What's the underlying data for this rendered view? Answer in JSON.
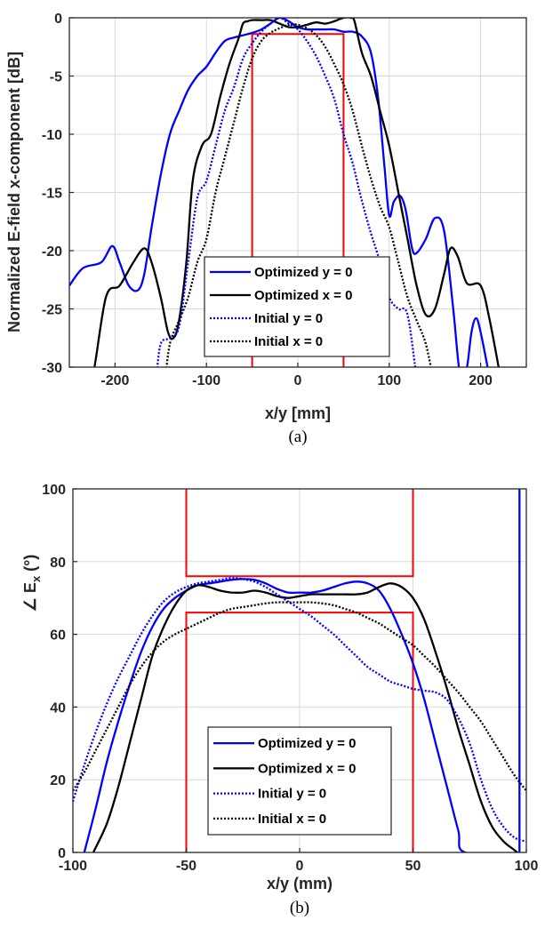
{
  "chart_data": [
    {
      "type": "line",
      "caption": "(a)",
      "xlabel": "x/y [mm]",
      "ylabel": "Normalized E-field x-component [dB]",
      "xlim": [
        -250,
        250
      ],
      "ylim": [
        -30,
        0
      ],
      "xticks": [
        -200,
        -100,
        0,
        100,
        200
      ],
      "yticks": [
        0,
        -5,
        -10,
        -15,
        -20,
        -25,
        -30
      ],
      "grid": true,
      "legend_position": "bottom-right",
      "series": [
        {
          "name": "Optimized y = 0",
          "color": "#0000ff",
          "style": "solid",
          "x": [
            -250,
            -235,
            -215,
            -203,
            -195,
            -185,
            -175,
            -168,
            -160,
            -150,
            -140,
            -130,
            -120,
            -110,
            -100,
            -90,
            -80,
            -70,
            -60,
            -50,
            -40,
            -30,
            -20,
            -10,
            0,
            10,
            20,
            30,
            40,
            50,
            60,
            70,
            80,
            88,
            95,
            100,
            105,
            112,
            118,
            125,
            130,
            140,
            150,
            160,
            170,
            178,
            185,
            190,
            195,
            200,
            210
          ],
          "y": [
            -23,
            -21.5,
            -21,
            -19.6,
            -21,
            -23,
            -23.4,
            -22,
            -18,
            -13.5,
            -10,
            -8,
            -6.2,
            -5,
            -4.2,
            -3,
            -2,
            -1.7,
            -1.5,
            -1.3,
            -1,
            -0.5,
            0,
            -0.3,
            -0.8,
            -1,
            -1,
            -1,
            -1,
            -1.2,
            -1.2,
            -1.6,
            -3,
            -7,
            -13,
            -17,
            -15.8,
            -15.3,
            -16.5,
            -19.8,
            -20.2,
            -19,
            -17.2,
            -18.3,
            -25,
            -31,
            -30,
            -27,
            -25.8,
            -27,
            -31
          ]
        },
        {
          "name": "Optimized x = 0",
          "color": "#000000",
          "style": "solid",
          "x": [
            -235,
            -225,
            -210,
            -195,
            -180,
            -168,
            -160,
            -150,
            -142,
            -136,
            -130,
            -122,
            -115,
            -105,
            -95,
            -85,
            -75,
            -65,
            -60,
            -55,
            -50,
            -40,
            -30,
            -20,
            -10,
            0,
            10,
            20,
            30,
            40,
            50,
            58,
            62,
            70,
            80,
            90,
            100,
            110,
            120,
            130,
            140,
            150,
            160,
            167,
            175,
            185,
            200,
            210,
            222
          ],
          "y": [
            -31,
            -31,
            -24,
            -23,
            -21,
            -19.8,
            -21,
            -24,
            -27,
            -27.5,
            -26,
            -21,
            -14,
            -11,
            -10,
            -6.8,
            -4,
            -1.8,
            -0.5,
            -0.3,
            -0.2,
            -0.2,
            -0.2,
            -0.5,
            -0.8,
            -0.8,
            -0.6,
            -0.4,
            -0.5,
            -0.3,
            0,
            0,
            -0.3,
            -3,
            -5,
            -8,
            -11,
            -15,
            -19,
            -23,
            -25.5,
            -25,
            -22,
            -19.8,
            -20.5,
            -22.8,
            -23,
            -26,
            -31
          ]
        },
        {
          "name": "Initial y = 0",
          "color": "#0000ff",
          "style": "dotted",
          "x": [
            -155,
            -150,
            -140,
            -130,
            -120,
            -110,
            -100,
            -90,
            -80,
            -70,
            -60,
            -50,
            -40,
            -30,
            -20,
            -10,
            0,
            10,
            20,
            30,
            40,
            50,
            60,
            70,
            80,
            90,
            100,
            110,
            120,
            130
          ],
          "y": [
            -31,
            -28,
            -27.5,
            -26.5,
            -21,
            -15.5,
            -14,
            -11,
            -8,
            -6,
            -3.5,
            -2.2,
            -1.2,
            -0.5,
            0,
            -0.5,
            -1,
            -2,
            -3.3,
            -5,
            -7,
            -10,
            -12.5,
            -15.7,
            -18.5,
            -21,
            -24,
            -25,
            -25.5,
            -31
          ]
        },
        {
          "name": "Initial x = 0",
          "color": "#000000",
          "style": "dotted",
          "x": [
            -145,
            -140,
            -130,
            -120,
            -110,
            -100,
            -90,
            -80,
            -70,
            -60,
            -50,
            -40,
            -30,
            -20,
            -10,
            0,
            10,
            20,
            30,
            40,
            50,
            60,
            70,
            80,
            90,
            100,
            110,
            120,
            130,
            140,
            148
          ],
          "y": [
            -31,
            -28,
            -26,
            -24,
            -21,
            -19,
            -15,
            -12,
            -9,
            -6,
            -3.5,
            -2,
            -1.3,
            -0.9,
            -0.6,
            -0.6,
            -0.9,
            -1.5,
            -2.5,
            -4,
            -5.7,
            -8,
            -11,
            -13.8,
            -16.2,
            -18,
            -21,
            -24,
            -26,
            -28,
            -31
          ]
        }
      ],
      "red_mask": {
        "x": [
          -50,
          -50,
          -50,
          50,
          50,
          50
        ],
        "y": [
          -31,
          -1.4,
          -1.4,
          -1.4,
          -1.4,
          -31
        ]
      }
    },
    {
      "type": "line",
      "caption": "(b)",
      "xlabel": "x/y (mm)",
      "ylabel": "∠ E_x (°)",
      "ylabel_main": "∠ E",
      "ylabel_sub": "x",
      "ylabel_tail": " (°)",
      "xlim": [
        -100,
        100
      ],
      "ylim": [
        0,
        100
      ],
      "xticks": [
        -100,
        -50,
        0,
        50,
        100
      ],
      "yticks": [
        0,
        20,
        40,
        60,
        80,
        100
      ],
      "grid": true,
      "legend_position": "bottom-right",
      "series": [
        {
          "name": "Optimized y = 0",
          "color": "#0000ff",
          "style": "solid",
          "x": [
            -95,
            -90,
            -85,
            -80,
            -75,
            -70,
            -65,
            -60,
            -55,
            -50,
            -45,
            -40,
            -35,
            -30,
            -25,
            -20,
            -15,
            -10,
            -5,
            0,
            5,
            10,
            15,
            20,
            25,
            30,
            35,
            40,
            45,
            50,
            55,
            60,
            65,
            70,
            73,
            97,
            97
          ],
          "y": [
            0,
            12,
            25,
            36,
            46,
            55,
            62,
            67,
            70,
            72,
            73.5,
            74,
            74.5,
            75,
            75.2,
            75,
            74,
            72.5,
            71.5,
            71.5,
            71.5,
            72,
            73,
            74,
            74.5,
            74,
            72,
            67,
            60,
            52,
            42,
            30,
            18,
            6,
            0,
            0,
            100
          ]
        },
        {
          "name": "Optimized x = 0",
          "color": "#000000",
          "style": "solid",
          "x": [
            -91,
            -85,
            -80,
            -75,
            -70,
            -65,
            -60,
            -55,
            -50,
            -45,
            -40,
            -35,
            -30,
            -25,
            -20,
            -15,
            -10,
            -5,
            0,
            5,
            10,
            15,
            20,
            25,
            30,
            35,
            40,
            45,
            50,
            55,
            60,
            65,
            70,
            75,
            80,
            85,
            90,
            94,
            96
          ],
          "y": [
            0,
            8,
            18,
            30,
            42,
            54,
            62,
            68,
            72,
            73.5,
            73,
            72,
            71.5,
            71.5,
            72,
            71.5,
            70.5,
            70,
            70.5,
            71,
            71,
            71,
            71,
            71,
            71.5,
            73,
            74,
            73,
            70,
            64,
            55,
            45,
            34,
            24,
            14,
            7,
            3,
            1,
            0
          ]
        },
        {
          "name": "Initial y = 0",
          "color": "#0000ff",
          "style": "dotted",
          "x": [
            -100,
            -95,
            -90,
            -85,
            -80,
            -75,
            -70,
            -65,
            -60,
            -55,
            -50,
            -45,
            -40,
            -35,
            -30,
            -25,
            -20,
            -15,
            -10,
            -5,
            0,
            5,
            10,
            15,
            20,
            25,
            30,
            35,
            40,
            45,
            50,
            55,
            60,
            65,
            70,
            75,
            80,
            85,
            90,
            95,
            100
          ],
          "y": [
            14,
            24,
            33,
            41,
            48,
            54,
            60,
            65,
            69,
            71.5,
            73,
            74,
            74.5,
            75,
            75.5,
            75.2,
            74.5,
            73,
            71,
            69,
            67,
            65,
            62.5,
            60,
            57,
            54,
            51,
            49,
            47,
            46,
            45,
            44.5,
            44,
            42,
            37,
            30,
            20,
            12,
            7,
            4,
            3
          ]
        },
        {
          "name": "Initial x = 0",
          "color": "#000000",
          "style": "dotted",
          "x": [
            -100,
            -95,
            -90,
            -85,
            -80,
            -75,
            -70,
            -65,
            -60,
            -55,
            -50,
            -45,
            -40,
            -35,
            -30,
            -25,
            -20,
            -15,
            -10,
            -5,
            0,
            5,
            10,
            15,
            20,
            25,
            30,
            35,
            40,
            45,
            50,
            55,
            60,
            65,
            70,
            75,
            80,
            85,
            90,
            95,
            100
          ],
          "y": [
            17,
            22,
            28,
            34,
            40,
            46,
            51,
            55,
            58,
            60,
            61.5,
            63,
            64.5,
            66,
            67,
            67.5,
            68,
            68.5,
            68.8,
            68.8,
            68.8,
            68.8,
            68.5,
            68,
            67,
            66,
            64.5,
            63,
            61,
            59,
            57,
            54,
            51,
            47.5,
            44,
            40,
            36,
            31,
            26,
            21,
            17
          ]
        }
      ],
      "red_mask": {
        "x": [
          -50,
          -50,
          50,
          50,
          -50,
          -50,
          50,
          50
        ],
        "y": [
          0,
          66,
          66,
          0,
          100,
          76,
          76,
          100
        ]
      }
    }
  ]
}
